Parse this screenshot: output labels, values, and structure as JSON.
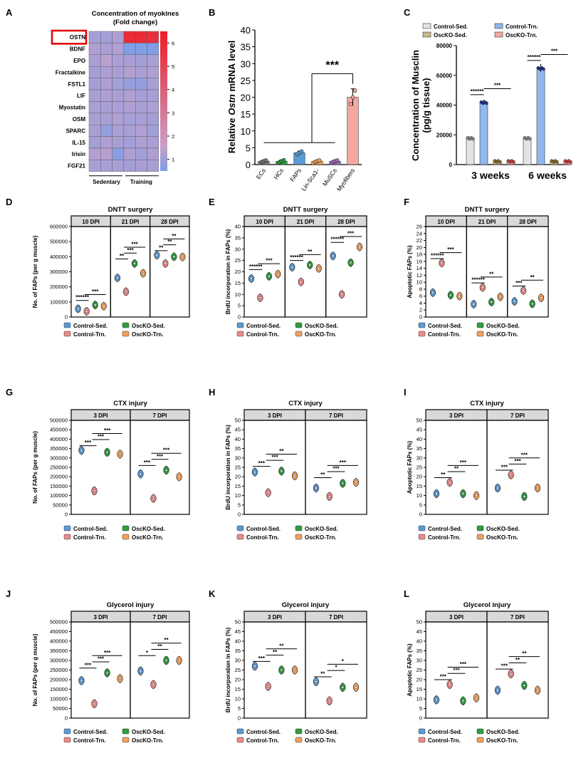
{
  "colors": {
    "ctrl_sed": "#5b9bd5",
    "ctrl_trn": "#f08a8a",
    "osc_sed": "#2e9e3e",
    "osc_trn": "#f5a05a",
    "bar_ctrl_sed": "#e3e3e3",
    "bar_osc_sed": "#c9b98a",
    "bar_ctrl_trn": "#8fb8f0",
    "bar_osc_trn": "#f5a8a0",
    "heat_low": "#7c9ee8",
    "heat_high": "#ee1c24",
    "highlight_box": "#e00000"
  },
  "panel_letters": [
    "A",
    "B",
    "C",
    "D",
    "E",
    "F",
    "G",
    "H",
    "I",
    "J",
    "K",
    "L"
  ],
  "chart_data": [
    {
      "id": "A",
      "type": "heatmap",
      "title": "Concentration of myokines\n(Fold change)",
      "rows": [
        "OSTN",
        "BDNF",
        "EPO",
        "Fractalkine",
        "FSTL1",
        "LIF",
        "Myostatin",
        "OSM",
        "SPARC",
        "IL-15",
        "Irisin",
        "FGF21"
      ],
      "group_labels": [
        "Sedentary",
        "Training"
      ],
      "highlight_row": "OSTN",
      "colorbar_ticks": [
        "6",
        "5",
        "4",
        "3",
        "2",
        "1"
      ],
      "colorbar_range": [
        0.5,
        6.5
      ],
      "values": [
        [
          1.3,
          1.3,
          1.4,
          6.0,
          6.0,
          5.8
        ],
        [
          1.5,
          1.4,
          1.5,
          0.6,
          0.6,
          0.6
        ],
        [
          1.4,
          1.7,
          1.4,
          1.4,
          1.3,
          1.4
        ],
        [
          1.3,
          1.5,
          1.4,
          1.6,
          1.4,
          1.5
        ],
        [
          1.3,
          1.5,
          1.3,
          1.0,
          1.0,
          1.4
        ],
        [
          1.4,
          1.5,
          1.4,
          1.5,
          1.3,
          1.4
        ],
        [
          1.4,
          1.4,
          1.4,
          1.5,
          1.4,
          1.5
        ],
        [
          1.4,
          1.4,
          1.5,
          1.3,
          1.4,
          1.3
        ],
        [
          1.4,
          1.0,
          1.4,
          1.4,
          1.5,
          1.2
        ],
        [
          1.3,
          1.5,
          1.4,
          1.3,
          1.5,
          1.4
        ],
        [
          1.6,
          1.6,
          0.8,
          1.5,
          1.3,
          1.5
        ],
        [
          1.4,
          1.4,
          1.4,
          1.3,
          1.4,
          1.4
        ]
      ]
    },
    {
      "id": "B",
      "type": "bar",
      "ylabel_pre": "Relative ",
      "ylabel_italic": "Ostn",
      "ylabel_post": " mRNA level",
      "ylim": [
        0,
        40
      ],
      "yticks": [
        "0",
        "5",
        "10",
        "15",
        "20",
        "25",
        "30",
        "35",
        "40"
      ],
      "categories": [
        "ECs",
        "HCs",
        "FAPs",
        "Lin-Sca1-",
        "MuSCs",
        "Myofibers"
      ],
      "values": [
        1.0,
        1.0,
        3.5,
        1.0,
        1.0,
        20.0
      ],
      "errors": [
        0.3,
        0.4,
        0.5,
        0.3,
        0.3,
        2.5
      ],
      "bar_colors": [
        "#7a7a7a",
        "#2e9e3e",
        "#5b9bd5",
        "#f5a05a",
        "#a070c0",
        "#f5a8a0"
      ],
      "significance": "***"
    },
    {
      "id": "C",
      "type": "bar",
      "ylabel": "Concentration of Musclin\n(pg/g tissue)",
      "ylim": [
        0,
        80000
      ],
      "yticks": [
        "0",
        "20000",
        "40000",
        "60000",
        "80000"
      ],
      "categories": [
        "3 weeks",
        "6 weeks"
      ],
      "series": [
        {
          "name": "Control-Sed.",
          "values": [
            18000,
            18000
          ]
        },
        {
          "name": "Control-Trn.",
          "values": [
            42000,
            65000
          ]
        },
        {
          "name": "OscKO-Sed.",
          "values": [
            2500,
            2500
          ]
        },
        {
          "name": "OscKO-Trn.",
          "values": [
            2500,
            2500
          ]
        }
      ],
      "significance": [
        "******",
        "***"
      ]
    },
    {
      "id": "D",
      "type": "violin",
      "title": "DNTT surgery",
      "ylabel": "No. of FAPs (per g muscle)",
      "ylim": [
        0,
        600000
      ],
      "yticks": [
        "0",
        "100000",
        "200000",
        "300000",
        "400000",
        "500000",
        "600000"
      ],
      "facets": [
        "10 DPI",
        "21 DPI",
        "28 DPI"
      ],
      "groups": [
        "Control-Sed.",
        "Control-Trn.",
        "OscKO-Sed.",
        "OscKO-Trn."
      ],
      "values": [
        [
          55000,
          38000,
          80000,
          72000
        ],
        [
          260000,
          168000,
          355000,
          290000
        ],
        [
          410000,
          355000,
          400000,
          398000
        ]
      ],
      "significance": [
        [
          "******",
          "***"
        ],
        [
          "**",
          "***",
          "***"
        ],
        [
          "**",
          "**",
          "**"
        ]
      ]
    },
    {
      "id": "E",
      "type": "violin",
      "title": "DNTT surgery",
      "ylabel": "BrdU incorporation in FAPs (%)",
      "ylim": [
        0,
        40
      ],
      "yticks": [
        "0",
        "5",
        "10",
        "15",
        "20",
        "25",
        "30",
        "35",
        "40"
      ],
      "facets": [
        "10 DPI",
        "21 DPI",
        "28 DPI"
      ],
      "groups": [
        "Control-Sed.",
        "Control-Trn.",
        "OscKO-Sed.",
        "OscKO-Trn."
      ],
      "values": [
        [
          17,
          8.5,
          18,
          19
        ],
        [
          22,
          15.5,
          23,
          21.5
        ],
        [
          27,
          10,
          24,
          31
        ]
      ],
      "significance": [
        [
          "******",
          "***"
        ],
        [
          "******",
          "**"
        ],
        [
          "******",
          "***"
        ]
      ]
    },
    {
      "id": "F",
      "type": "violin",
      "title": "DNTT surgery",
      "ylabel": "Apoptotic FAPs (%)",
      "ylim": [
        0,
        26
      ],
      "yticks": [
        "0",
        "2",
        "4",
        "6",
        "8",
        "10",
        "12",
        "14",
        "16",
        "18",
        "20",
        "22",
        "24",
        "26"
      ],
      "facets": [
        "10 DPI",
        "21 DPI",
        "28 DPI"
      ],
      "groups": [
        "Control-Sed.",
        "Control-Trn.",
        "OscKO-Sed.",
        "OscKO-Trn."
      ],
      "values": [
        [
          7,
          15.5,
          6.3,
          6
        ],
        [
          3.7,
          8.5,
          4.3,
          5.8
        ],
        [
          4.5,
          7.6,
          3.8,
          5.5
        ]
      ],
      "significance": [
        [
          "******",
          "***"
        ],
        [
          "******",
          "**"
        ],
        [
          "***",
          "**"
        ]
      ]
    },
    {
      "id": "G",
      "type": "violin",
      "title": "CTX injury",
      "ylabel": "No. of FAPs (per g muscle)",
      "ylim": [
        0,
        500000
      ],
      "yticks": [
        "0",
        "50000",
        "100000",
        "150000",
        "200000",
        "250000",
        "300000",
        "350000",
        "400000",
        "450000",
        "500000"
      ],
      "facets": [
        "3 DPI",
        "7 DPI"
      ],
      "groups": [
        "Control-Sed.",
        "Control-Trn.",
        "OscKO-Sed.",
        "OscKO-Trn."
      ],
      "values": [
        [
          340000,
          125000,
          330000,
          320000
        ],
        [
          215000,
          85000,
          235000,
          200000
        ]
      ],
      "significance": [
        [
          "***",
          "***",
          "***"
        ],
        [
          "***",
          "***",
          "***"
        ]
      ]
    },
    {
      "id": "H",
      "type": "violin",
      "title": "CTX injury",
      "ylabel": "BrdU incorporation in FAPs (%)",
      "ylim": [
        0,
        50
      ],
      "yticks": [
        "0",
        "5",
        "10",
        "15",
        "20",
        "25",
        "30",
        "35",
        "40",
        "45",
        "50"
      ],
      "facets": [
        "3 DPI",
        "7 DPI"
      ],
      "groups": [
        "Control-Sed.",
        "Control-Trn.",
        "OscKO-Sed.",
        "OscKO-Trn."
      ],
      "values": [
        [
          22.5,
          11.5,
          23,
          20.5
        ],
        [
          14,
          9.5,
          16.5,
          17
        ]
      ],
      "significance": [
        [
          "***",
          "***",
          "**"
        ],
        [
          "**",
          "***",
          "***"
        ]
      ]
    },
    {
      "id": "I",
      "type": "violin",
      "title": "CTX injury",
      "ylabel": "Apoptotic FAPs (%)",
      "ylim": [
        0,
        50
      ],
      "yticks": [
        "0",
        "5",
        "10",
        "15",
        "20",
        "25",
        "30",
        "35",
        "40",
        "45",
        "50"
      ],
      "facets": [
        "3 DPI",
        "7 DPI"
      ],
      "groups": [
        "Control-Sed.",
        "Control-Trn.",
        "OscKO-Sed.",
        "OscKO-Trn."
      ],
      "values": [
        [
          11,
          17,
          11,
          10
        ],
        [
          14,
          21,
          9.5,
          14
        ]
      ],
      "significance": [
        [
          "**",
          "**",
          "***"
        ],
        [
          "***",
          "***",
          "***"
        ]
      ]
    },
    {
      "id": "J",
      "type": "violin",
      "title": "Glycerol injury",
      "ylabel": "No. of FAPs (per g muscle)",
      "ylim": [
        0,
        500000
      ],
      "yticks": [
        "0",
        "50000",
        "100000",
        "150000",
        "200000",
        "250000",
        "300000",
        "350000",
        "400000",
        "450000",
        "500000"
      ],
      "facets": [
        "3 DPI",
        "7 DPI"
      ],
      "groups": [
        "Control-Sed.",
        "Control-Trn.",
        "OscKO-Sed.",
        "OscKO-Trn."
      ],
      "values": [
        [
          195000,
          75000,
          235000,
          205000
        ],
        [
          245000,
          175000,
          300000,
          300000
        ]
      ],
      "significance": [
        [
          "***",
          "***",
          "***"
        ],
        [
          "*",
          "**",
          "**"
        ]
      ]
    },
    {
      "id": "K",
      "type": "violin",
      "title": "Glycerol injury",
      "ylabel": "BrdU incorporation in FAPs (%)",
      "ylim": [
        0,
        50
      ],
      "yticks": [
        "0",
        "5",
        "10",
        "15",
        "20",
        "25",
        "30",
        "35",
        "40",
        "45",
        "50"
      ],
      "facets": [
        "3 DPI",
        "7 DPI"
      ],
      "groups": [
        "Control-Sed.",
        "Control-Trn.",
        "OscKO-Sed.",
        "OscKO-Trn."
      ],
      "values": [
        [
          27,
          16.5,
          25,
          25
        ],
        [
          19,
          9,
          16,
          16
        ]
      ],
      "significance": [
        [
          "***",
          "**",
          "**"
        ],
        [
          "**",
          "*",
          "*"
        ]
      ]
    },
    {
      "id": "L",
      "type": "violin",
      "title": "Glycerol injury",
      "ylabel": "Apoptotic FAPs (%)",
      "ylim": [
        0,
        50
      ],
      "yticks": [
        "0",
        "5",
        "10",
        "15",
        "20",
        "25",
        "30",
        "35",
        "40",
        "45",
        "50"
      ],
      "facets": [
        "3 DPI",
        "7 DPI"
      ],
      "groups": [
        "Control-Sed.",
        "Control-Trn.",
        "OscKO-Sed.",
        "OscKO-Trn."
      ],
      "values": [
        [
          9.5,
          17.5,
          9,
          10.5
        ],
        [
          14.5,
          23,
          17,
          14.5
        ]
      ],
      "significance": [
        [
          "***",
          "***",
          "***"
        ],
        [
          "***",
          "**",
          "**"
        ]
      ]
    }
  ]
}
